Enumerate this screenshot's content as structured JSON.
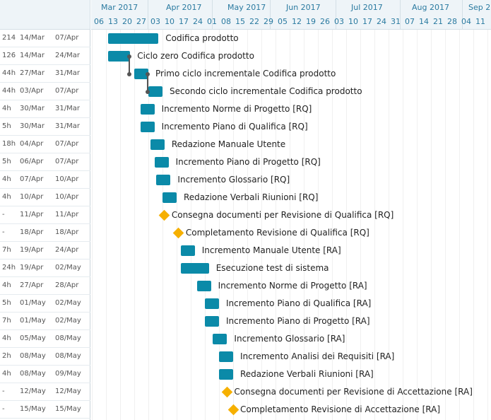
{
  "header": {
    "months": [
      "Mar 2017",
      "Apr 2017",
      "May 2017",
      "Jun 2017",
      "Jul 2017",
      "Aug 2017",
      "Sep 2"
    ],
    "weeks": [
      "06",
      "13",
      "20",
      "27",
      "03",
      "10",
      "17",
      "24",
      "01",
      "08",
      "15",
      "22",
      "29",
      "05",
      "12",
      "19",
      "26",
      "03",
      "10",
      "17",
      "24",
      "31",
      "07",
      "14",
      "21",
      "28",
      "04",
      "11"
    ]
  },
  "tasks": [
    {
      "duration": "214",
      "start": "14/Mar",
      "end": "07/Apr",
      "name": "Codifica prodotto",
      "type": "bar"
    },
    {
      "duration": "126",
      "start": "14/Mar",
      "end": "24/Mar",
      "name": "Ciclo zero Codifica prodotto",
      "type": "bar"
    },
    {
      "duration": "44h",
      "start": "27/Mar",
      "end": "31/Mar",
      "name": "Primo ciclo incrementale Codifica prodotto",
      "type": "bar"
    },
    {
      "duration": "44h",
      "start": "03/Apr",
      "end": "07/Apr",
      "name": "Secondo ciclo incrementale Codifica prodotto",
      "type": "bar"
    },
    {
      "duration": "4h",
      "start": "30/Mar",
      "end": "31/Mar",
      "name": "Incremento Norme di Progetto [RQ]",
      "type": "bar"
    },
    {
      "duration": "5h",
      "start": "30/Mar",
      "end": "31/Mar",
      "name": "Incremento Piano di Qualifica [RQ]",
      "type": "bar"
    },
    {
      "duration": "18h",
      "start": "04/Apr",
      "end": "07/Apr",
      "name": "Redazione Manuale Utente",
      "type": "bar"
    },
    {
      "duration": "5h",
      "start": "06/Apr",
      "end": "07/Apr",
      "name": "Incremento Piano di Progetto [RQ]",
      "type": "bar"
    },
    {
      "duration": "4h",
      "start": "07/Apr",
      "end": "10/Apr",
      "name": "Incremento Glossario [RQ]",
      "type": "bar"
    },
    {
      "duration": "4h",
      "start": "10/Apr",
      "end": "10/Apr",
      "name": "Redazione Verbali Riunioni [RQ]",
      "type": "bar"
    },
    {
      "duration": "-",
      "start": "11/Apr",
      "end": "11/Apr",
      "name": "Consegna documenti per Revisione di Qualifica [RQ]",
      "type": "milestone"
    },
    {
      "duration": "-",
      "start": "18/Apr",
      "end": "18/Apr",
      "name": "Completamento Revisione di Qualifica [RQ]",
      "type": "milestone"
    },
    {
      "duration": "7h",
      "start": "19/Apr",
      "end": "24/Apr",
      "name": "Incremento Manuale Utente [RA]",
      "type": "bar"
    },
    {
      "duration": "24h",
      "start": "19/Apr",
      "end": "02/May",
      "name": "Esecuzione test di sistema",
      "type": "bar"
    },
    {
      "duration": "4h",
      "start": "27/Apr",
      "end": "28/Apr",
      "name": "Incremento Norme di Progetto [RA]",
      "type": "bar"
    },
    {
      "duration": "5h",
      "start": "01/May",
      "end": "02/May",
      "name": "Incremento Piano di Qualifica [RA]",
      "type": "bar"
    },
    {
      "duration": "7h",
      "start": "01/May",
      "end": "02/May",
      "name": "Incremento Piano di Progetto [RA]",
      "type": "bar"
    },
    {
      "duration": "4h",
      "start": "05/May",
      "end": "08/May",
      "name": "Incremento Glossario [RA]",
      "type": "bar"
    },
    {
      "duration": "2h",
      "start": "08/May",
      "end": "08/May",
      "name": "Incremento Analisi dei Requisiti [RA]",
      "type": "bar"
    },
    {
      "duration": "4h",
      "start": "08/May",
      "end": "09/May",
      "name": "Redazione Verbali Riunioni [RA]",
      "type": "bar"
    },
    {
      "duration": "-",
      "start": "12/May",
      "end": "12/May",
      "name": "Consegna documenti per Revisione di Accettazione [RA]",
      "type": "milestone"
    },
    {
      "duration": "-",
      "start": "15/May",
      "end": "15/May",
      "name": "Completamento Revisione di Accettazione [RA]",
      "type": "milestone"
    }
  ],
  "colors": {
    "bar": "#0b8aa8",
    "milestone": "#f6b000",
    "header_text": "#2a7aa0"
  }
}
